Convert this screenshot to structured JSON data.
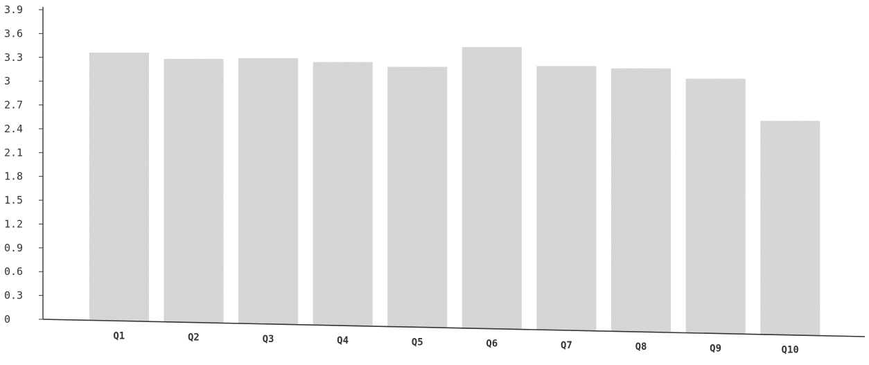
{
  "chart_data": {
    "type": "bar",
    "title": "",
    "xlabel": "",
    "ylabel": "",
    "categories": [
      "Q1",
      "Q2",
      "Q3",
      "Q4",
      "Q5",
      "Q6",
      "Q7",
      "Q8",
      "Q9",
      "Q10"
    ],
    "values": [
      3.36,
      3.28,
      3.29,
      3.24,
      3.18,
      3.43,
      3.19,
      3.16,
      3.03,
      2.5
    ],
    "ylim": [
      0,
      3.9
    ],
    "yticks": [
      "0",
      "0.3",
      "0.6",
      "0.9",
      "1.2",
      "1.5",
      "1.8",
      "2.1",
      "2.4",
      "2.7",
      "3",
      "3.3",
      "3.6",
      "3.9"
    ],
    "grid": false,
    "legend": "none",
    "bar_color": "#d9d9d9",
    "axis_color": "#333333"
  }
}
